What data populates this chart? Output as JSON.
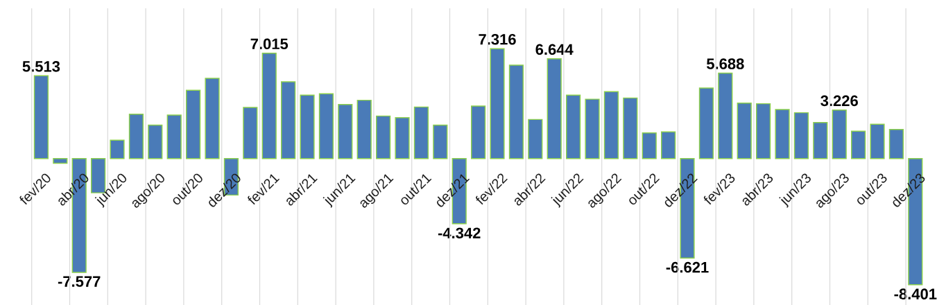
{
  "chart_data": {
    "type": "bar",
    "categories": [
      "fev/20",
      null,
      "abr/20",
      null,
      "jun/20",
      null,
      "ago/20",
      null,
      "out/20",
      null,
      "dez/20",
      null,
      "fev/21",
      null,
      "abr/21",
      null,
      "jun/21",
      null,
      "ago/21",
      null,
      "out/21",
      null,
      "dez/21",
      null,
      "fev/22",
      null,
      "abr/22",
      null,
      "jun/22",
      null,
      "ago/22",
      null,
      "out/22",
      null,
      "dez/22",
      null,
      "fev/23",
      null,
      "abr/23",
      null,
      "jun/23",
      null,
      "ago/23",
      null,
      "out/23",
      null,
      "dez/23"
    ],
    "values": [
      5.513,
      -0.31,
      -7.577,
      -2.28,
      1.22,
      2.95,
      2.22,
      2.89,
      4.54,
      5.34,
      -2.43,
      3.4,
      7.015,
      5.11,
      4.22,
      4.31,
      3.6,
      3.88,
      2.83,
      2.72,
      3.43,
      2.22,
      -4.342,
      3.49,
      7.316,
      6.22,
      2.6,
      6.644,
      4.22,
      3.95,
      4.45,
      4.03,
      1.71,
      1.77,
      -6.621,
      4.69,
      5.688,
      3.69,
      3.65,
      3.26,
      3.05,
      2.4,
      3.226,
      1.82,
      2.28,
      1.94,
      -8.401
    ],
    "value_labels": [
      "5.513",
      null,
      "-7.577",
      null,
      null,
      null,
      null,
      null,
      null,
      null,
      null,
      null,
      "7.015",
      null,
      null,
      null,
      null,
      null,
      null,
      null,
      null,
      null,
      "-4.342",
      null,
      "7.316",
      null,
      null,
      "6.644",
      null,
      null,
      null,
      null,
      null,
      null,
      "-6.621",
      null,
      "5.688",
      null,
      null,
      null,
      null,
      null,
      "3.226",
      null,
      null,
      null,
      "-8.401"
    ],
    "color": "#4a7bb8",
    "ylim": [
      -9.75,
      10
    ],
    "grid": "x",
    "tick_labels": "x"
  }
}
